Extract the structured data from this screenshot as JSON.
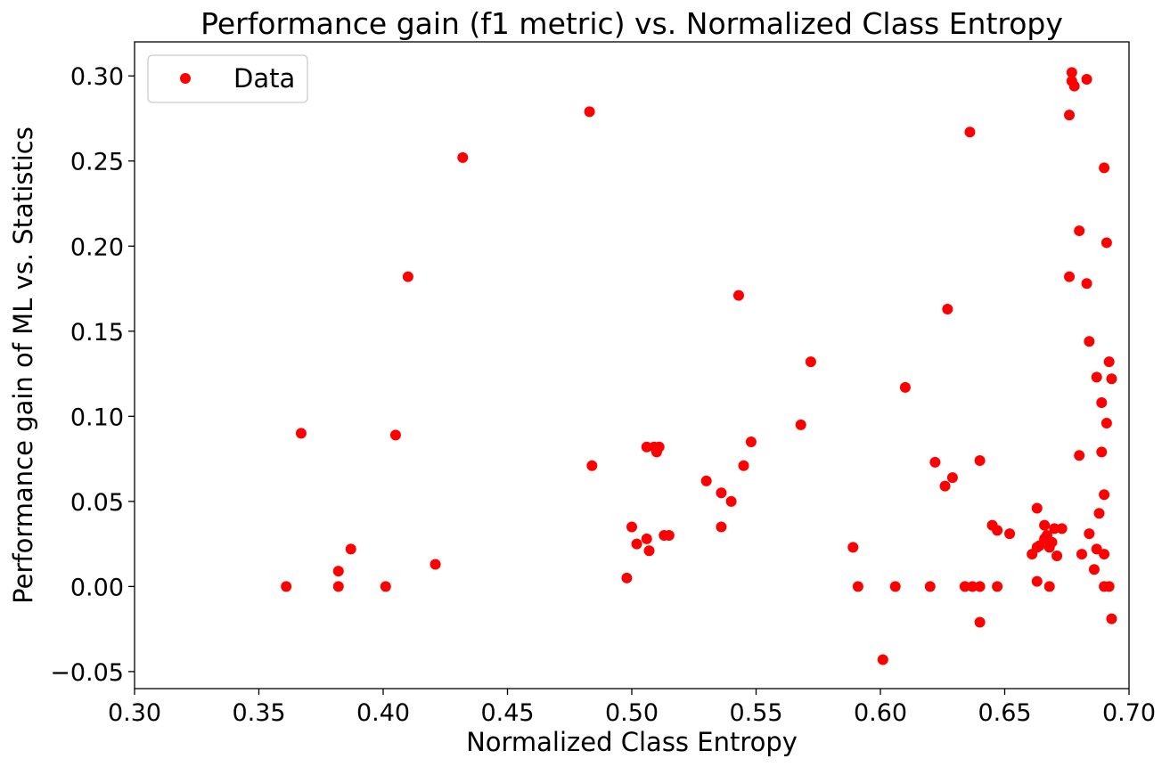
{
  "chart_data": {
    "type": "scatter",
    "title": "Performance gain (f1 metric) vs. Normalized Class Entropy",
    "xlabel": "Normalized Class Entropy",
    "ylabel": "Performance gain of ML vs. Statistics",
    "xlim": [
      0.3,
      0.7
    ],
    "ylim": [
      -0.06,
      0.32
    ],
    "xticks": [
      0.3,
      0.35,
      0.4,
      0.45,
      0.5,
      0.55,
      0.6,
      0.65,
      0.7
    ],
    "xtick_labels": [
      "0.30",
      "0.35",
      "0.40",
      "0.45",
      "0.50",
      "0.55",
      "0.60",
      "0.65",
      "0.70"
    ],
    "yticks": [
      -0.05,
      0.0,
      0.05,
      0.1,
      0.15,
      0.2,
      0.25,
      0.3
    ],
    "ytick_labels": [
      "−0.05",
      "0.00",
      "0.05",
      "0.10",
      "0.15",
      "0.20",
      "0.25",
      "0.30"
    ],
    "grid": false,
    "legend": {
      "position": "top-left",
      "entries": [
        "Data"
      ]
    },
    "series": [
      {
        "name": "Data",
        "color": "#ff0000",
        "marker": "circle",
        "points": [
          [
            0.361,
            0.0
          ],
          [
            0.367,
            0.09
          ],
          [
            0.382,
            0.009
          ],
          [
            0.382,
            0.0
          ],
          [
            0.387,
            0.022
          ],
          [
            0.401,
            0.0
          ],
          [
            0.405,
            0.089
          ],
          [
            0.41,
            0.182
          ],
          [
            0.421,
            0.013
          ],
          [
            0.432,
            0.252
          ],
          [
            0.483,
            0.279
          ],
          [
            0.484,
            0.071
          ],
          [
            0.498,
            0.005
          ],
          [
            0.5,
            0.035
          ],
          [
            0.502,
            0.025
          ],
          [
            0.506,
            0.028
          ],
          [
            0.506,
            0.082
          ],
          [
            0.507,
            0.021
          ],
          [
            0.509,
            0.082
          ],
          [
            0.51,
            0.079
          ],
          [
            0.511,
            0.082
          ],
          [
            0.513,
            0.03
          ],
          [
            0.515,
            0.03
          ],
          [
            0.53,
            0.062
          ],
          [
            0.536,
            0.035
          ],
          [
            0.536,
            0.055
          ],
          [
            0.54,
            0.05
          ],
          [
            0.543,
            0.171
          ],
          [
            0.545,
            0.071
          ],
          [
            0.548,
            0.085
          ],
          [
            0.568,
            0.095
          ],
          [
            0.572,
            0.132
          ],
          [
            0.589,
            0.023
          ],
          [
            0.591,
            0.0
          ],
          [
            0.601,
            -0.043
          ],
          [
            0.606,
            0.0
          ],
          [
            0.61,
            0.117
          ],
          [
            0.62,
            0.0
          ],
          [
            0.622,
            0.073
          ],
          [
            0.626,
            0.059
          ],
          [
            0.627,
            0.163
          ],
          [
            0.629,
            0.064
          ],
          [
            0.634,
            0.0
          ],
          [
            0.636,
            0.267
          ],
          [
            0.637,
            0.0
          ],
          [
            0.64,
            0.0
          ],
          [
            0.64,
            0.074
          ],
          [
            0.64,
            -0.021
          ],
          [
            0.645,
            0.036
          ],
          [
            0.647,
            0.033
          ],
          [
            0.647,
            0.0
          ],
          [
            0.652,
            0.031
          ],
          [
            0.661,
            0.019
          ],
          [
            0.663,
            0.046
          ],
          [
            0.663,
            0.003
          ],
          [
            0.663,
            0.023
          ],
          [
            0.664,
            0.024
          ],
          [
            0.666,
            0.036
          ],
          [
            0.666,
            0.028
          ],
          [
            0.667,
            0.03
          ],
          [
            0.668,
            0.023
          ],
          [
            0.668,
            0.0
          ],
          [
            0.669,
            0.026
          ],
          [
            0.67,
            0.034
          ],
          [
            0.671,
            0.018
          ],
          [
            0.673,
            0.034
          ],
          [
            0.676,
            0.277
          ],
          [
            0.676,
            0.182
          ],
          [
            0.677,
            0.302
          ],
          [
            0.677,
            0.297
          ],
          [
            0.678,
            0.294
          ],
          [
            0.68,
            0.209
          ],
          [
            0.68,
            0.077
          ],
          [
            0.681,
            0.019
          ],
          [
            0.683,
            0.298
          ],
          [
            0.683,
            0.178
          ],
          [
            0.684,
            0.144
          ],
          [
            0.684,
            0.031
          ],
          [
            0.686,
            0.01
          ],
          [
            0.687,
            0.123
          ],
          [
            0.687,
            0.022
          ],
          [
            0.688,
            0.043
          ],
          [
            0.689,
            0.108
          ],
          [
            0.689,
            0.079
          ],
          [
            0.69,
            0.246
          ],
          [
            0.69,
            0.054
          ],
          [
            0.69,
            0.019
          ],
          [
            0.69,
            0.0
          ],
          [
            0.691,
            0.202
          ],
          [
            0.691,
            0.096
          ],
          [
            0.692,
            0.132
          ],
          [
            0.692,
            0.0
          ],
          [
            0.693,
            -0.019
          ],
          [
            0.693,
            0.122
          ]
        ]
      }
    ]
  }
}
